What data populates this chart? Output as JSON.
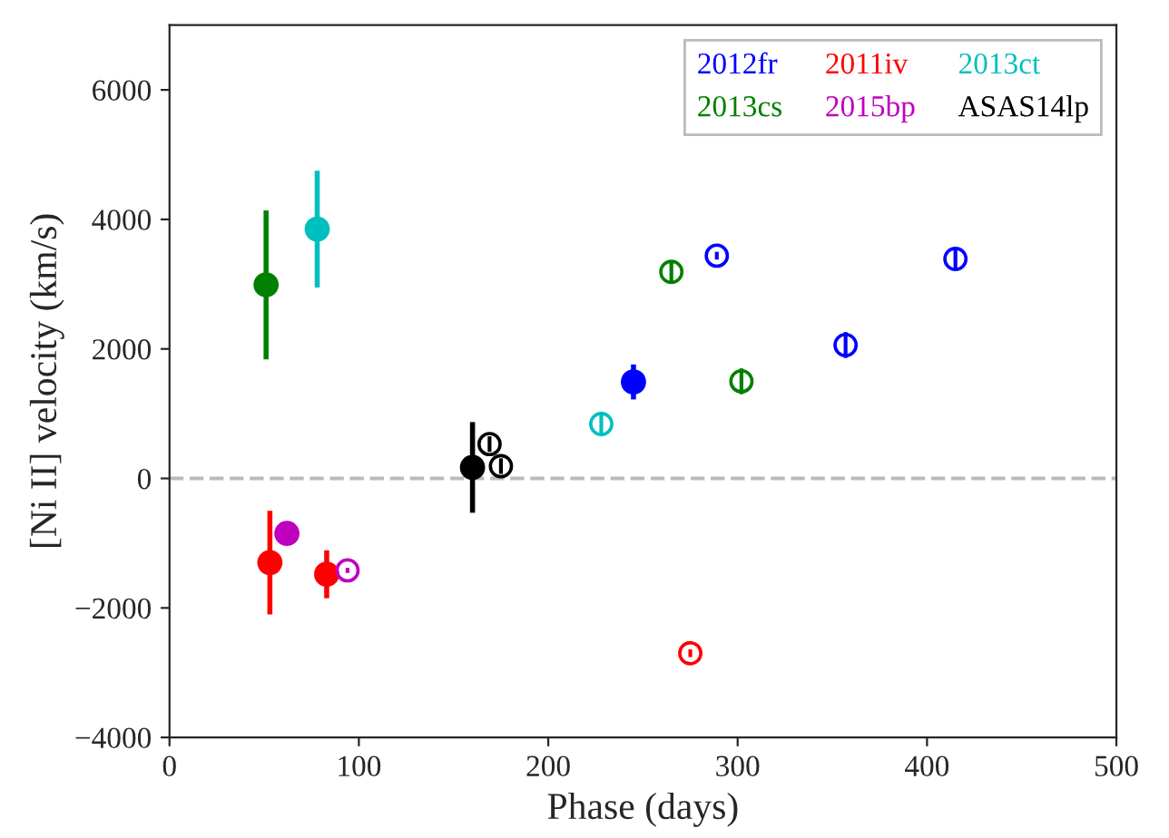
{
  "chart_data": {
    "type": "scatter",
    "xlabel": "Phase (days)",
    "ylabel": "[Ni II] velocity (km/s)",
    "xlim": [
      0,
      500
    ],
    "xticks": [
      0,
      100,
      200,
      300,
      400,
      500
    ],
    "ylim": [
      -4000,
      7000
    ],
    "yticks": [
      {
        "value": -4000,
        "label": "−4000"
      },
      {
        "value": -2000,
        "label": "−2000"
      },
      0,
      2000,
      4000,
      6000
    ],
    "grid": false,
    "legend": "top right",
    "marker": "circle",
    "ref_lines": [
      {
        "axis": "y",
        "value": 0,
        "color": "#bbbbbb",
        "line_style": "dashed"
      }
    ],
    "series": [
      {
        "name": "2012fr",
        "color": "#0000ff",
        "x": [
          245
        ],
        "values": [
          1490
        ],
        "errors": [
          270
        ]
      },
      {
        "name": "2011iv",
        "color": "#ff0000",
        "x": [
          53,
          83
        ],
        "values": [
          -1300,
          -1480
        ],
        "errors": [
          800,
          370
        ]
      },
      {
        "name": "2013ct",
        "color": "#00bfbf",
        "x": [
          78
        ],
        "values": [
          3850
        ],
        "errors": [
          900
        ]
      },
      {
        "name": "2013cs",
        "color": "#008000",
        "x": [
          51
        ],
        "values": [
          2990
        ],
        "errors": [
          1150
        ]
      },
      {
        "name": "2015bp",
        "color": "#bf00bf",
        "x": [
          62
        ],
        "values": [
          -850
        ],
        "errors": [
          null
        ]
      },
      {
        "name": "ASAS14lp",
        "color": "#000000",
        "x": [
          160
        ],
        "values": [
          170
        ],
        "errors": [
          700
        ]
      },
      {
        "color": "#0000ff",
        "x": [
          289,
          357,
          415
        ],
        "values": [
          3440,
          2060,
          3390
        ],
        "errors": [
          60,
          200,
          150
        ]
      },
      {
        "color": "#ff0000",
        "x": [
          275
        ],
        "values": [
          -2700
        ],
        "errors": [
          60
        ]
      },
      {
        "color": "#00bfbf",
        "x": [
          228
        ],
        "values": [
          840
        ],
        "errors": [
          180
        ]
      },
      {
        "color": "#008000",
        "x": [
          265,
          302
        ],
        "values": [
          3190,
          1500
        ],
        "errors": [
          180,
          200
        ]
      },
      {
        "color": "#bf00bf",
        "x": [
          94
        ],
        "values": [
          -1420
        ],
        "errors": [
          40
        ]
      },
      {
        "color": "#000000",
        "x": [
          169,
          175
        ],
        "values": [
          530,
          190
        ],
        "errors": [
          120,
          120
        ]
      }
    ]
  }
}
